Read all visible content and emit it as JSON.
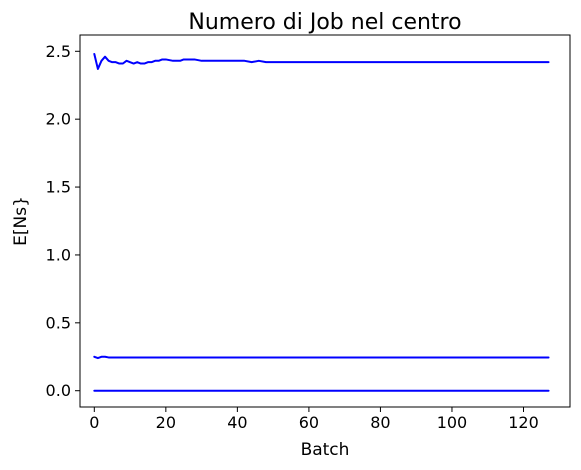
{
  "chart_data": {
    "type": "line",
    "title": "Numero di Job nel centro",
    "xlabel": "Batch",
    "ylabel": "E[Ns}",
    "xlim": [
      -4,
      133
    ],
    "ylim": [
      -0.12,
      2.62
    ],
    "xticks": [
      0,
      20,
      40,
      60,
      80,
      100,
      120
    ],
    "xtick_labels": [
      "0",
      "20",
      "40",
      "60",
      "80",
      "100",
      "120"
    ],
    "yticks": [
      0.0,
      0.5,
      1.0,
      1.5,
      2.0,
      2.5
    ],
    "ytick_labels": [
      "0.0",
      "0.5",
      "1.0",
      "1.5",
      "2.0",
      "2.5"
    ],
    "grid": false,
    "line_color": "#0000ff",
    "series": [
      {
        "x": [
          0,
          1,
          2,
          3,
          4,
          5,
          6,
          7,
          8,
          9,
          10,
          11,
          12,
          13,
          14,
          15,
          16,
          17,
          18,
          19,
          20,
          22,
          24,
          25,
          26,
          28,
          30,
          32,
          34,
          36,
          38,
          40,
          42,
          44,
          46,
          48,
          50,
          52,
          54,
          56,
          58,
          60,
          64,
          68,
          72,
          76,
          80,
          84,
          88,
          92,
          96,
          100,
          104,
          108,
          112,
          116,
          120,
          124,
          127
        ],
        "y": [
          2.48,
          2.37,
          2.43,
          2.46,
          2.43,
          2.42,
          2.42,
          2.41,
          2.41,
          2.43,
          2.42,
          2.41,
          2.42,
          2.41,
          2.41,
          2.42,
          2.42,
          2.43,
          2.43,
          2.44,
          2.44,
          2.43,
          2.43,
          2.44,
          2.44,
          2.44,
          2.43,
          2.43,
          2.43,
          2.43,
          2.43,
          2.43,
          2.43,
          2.42,
          2.43,
          2.42,
          2.42,
          2.42,
          2.42,
          2.42,
          2.42,
          2.42,
          2.42,
          2.42,
          2.42,
          2.42,
          2.42,
          2.42,
          2.42,
          2.42,
          2.42,
          2.42,
          2.42,
          2.42,
          2.42,
          2.42,
          2.42,
          2.42,
          2.42
        ]
      },
      {
        "x": [
          0,
          1,
          2,
          3,
          4,
          6,
          8,
          10,
          12,
          14,
          16,
          18,
          20,
          25,
          30,
          40,
          50,
          60,
          70,
          80,
          90,
          100,
          110,
          120,
          127
        ],
        "y": [
          0.25,
          0.24,
          0.25,
          0.25,
          0.245,
          0.245,
          0.245,
          0.245,
          0.245,
          0.245,
          0.245,
          0.245,
          0.245,
          0.245,
          0.245,
          0.245,
          0.245,
          0.245,
          0.245,
          0.245,
          0.245,
          0.245,
          0.245,
          0.245,
          0.245
        ]
      },
      {
        "x": [
          0,
          127
        ],
        "y": [
          0.0,
          0.0
        ]
      }
    ]
  }
}
